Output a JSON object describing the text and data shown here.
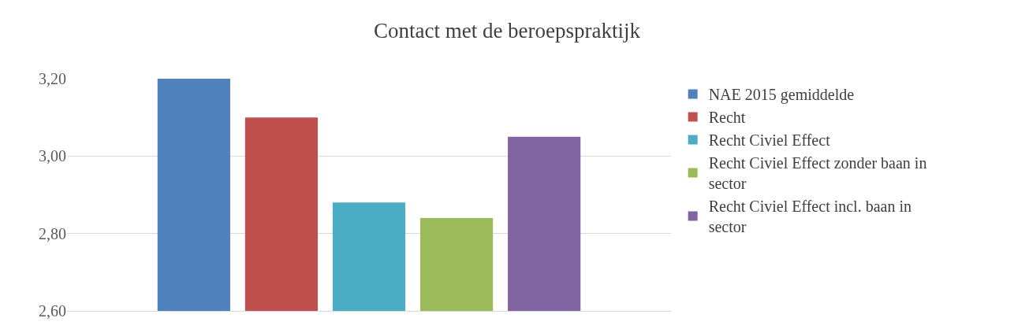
{
  "chart_data": {
    "type": "bar",
    "title": "Contact met de beroepspraktijk",
    "categories": [
      null
    ],
    "series": [
      {
        "name": "NAE 2015 gemiddelde",
        "color": "#4f81bd",
        "values": [
          3.2
        ]
      },
      {
        "name": "Recht",
        "color": "#c0504d",
        "values": [
          3.1
        ]
      },
      {
        "name": "Recht Civiel Effect",
        "color": "#4bacc6",
        "values": [
          2.88
        ]
      },
      {
        "name": "Recht Civiel Effect zonder baan in sector",
        "color": "#9bbb59",
        "values": [
          2.84
        ]
      },
      {
        "name": "Recht Civiel Effect incl. baan in sector",
        "color": "#8064a2",
        "values": [
          3.05
        ]
      }
    ],
    "ylim": [
      2.6,
      3.2
    ],
    "yticks": [
      {
        "value": 2.6,
        "label": "2,60"
      },
      {
        "value": 2.8,
        "label": "2,80"
      },
      {
        "value": 3.0,
        "label": "3,00"
      },
      {
        "value": 3.2,
        "label": "3,20"
      }
    ],
    "grid": "y",
    "legend": "right"
  }
}
